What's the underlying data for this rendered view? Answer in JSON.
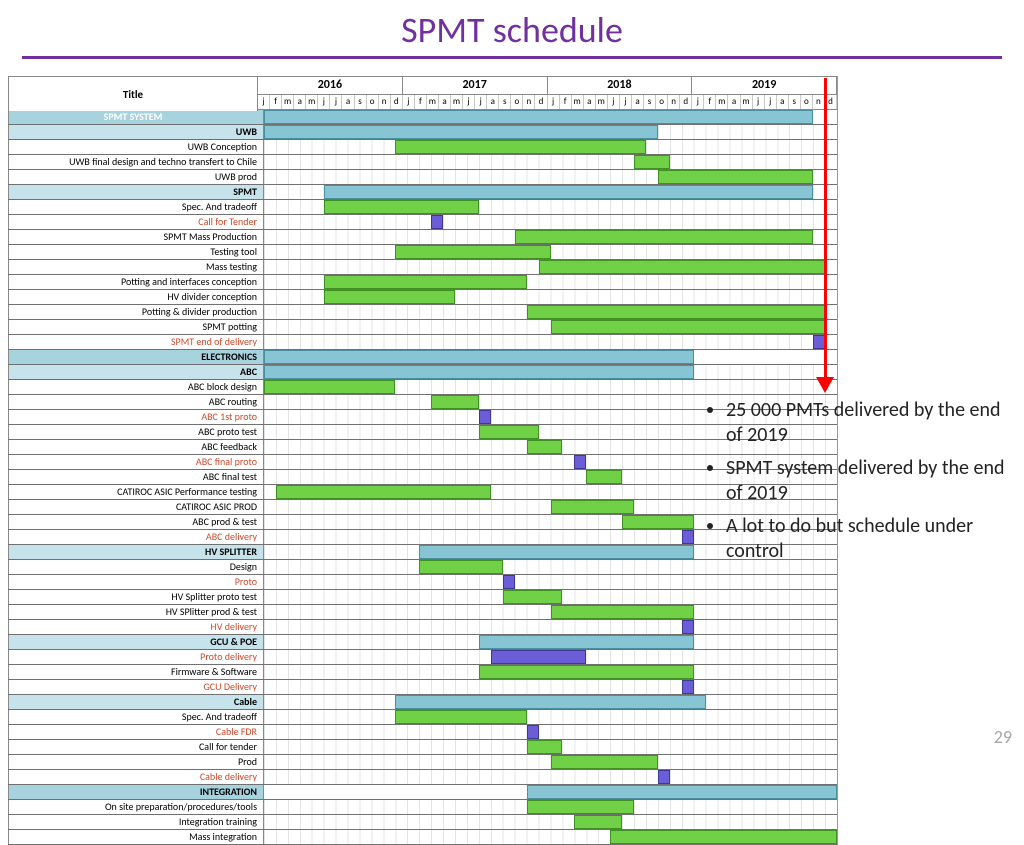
{
  "slide": {
    "title": "SPMT schedule",
    "title_color": "#7030a0",
    "underline_color": "#7030a0",
    "page_number": "29"
  },
  "bullets": [
    "25 000 PMTs delivered by the end of 2019",
    "SPMT system delivered by the end of 2019",
    "A lot to do but schedule under control"
  ],
  "gantt": {
    "title_header": "Title",
    "years": [
      "2016",
      "2017",
      "2018",
      "2019"
    ],
    "months": [
      "j",
      "f",
      "m",
      "a",
      "m",
      "j",
      "j",
      "a",
      "s",
      "o",
      "n",
      "d"
    ],
    "total_months": 48,
    "colors": {
      "section_bg": "#a7d3df",
      "subsection_bg": "#c6e2ea",
      "green": "#70d147",
      "teal": "#87c4d4",
      "purple": "#6a5dd6",
      "milestone_label": "#d14a2b",
      "grid": "#e4e4e4",
      "border": "#888888"
    },
    "rows": [
      {
        "label": "SPMT SYSTEM",
        "type": "section",
        "label_align": "center",
        "label_color": "#ffffff",
        "bars": [
          {
            "start": 0,
            "end": 46,
            "color": "teal"
          }
        ]
      },
      {
        "label": "UWB",
        "type": "subsection",
        "bars": [
          {
            "start": 0,
            "end": 33,
            "color": "teal"
          }
        ]
      },
      {
        "label": "UWB Conception",
        "type": "task",
        "bars": [
          {
            "start": 11,
            "end": 32,
            "color": "green"
          }
        ]
      },
      {
        "label": "UWB final design and techno transfert to Chile",
        "type": "task",
        "bars": [
          {
            "start": 31,
            "end": 34,
            "color": "green"
          }
        ]
      },
      {
        "label": "UWB prod",
        "type": "task",
        "bars": [
          {
            "start": 33,
            "end": 46,
            "color": "green"
          }
        ]
      },
      {
        "label": "SPMT",
        "type": "subsection",
        "bars": [
          {
            "start": 5,
            "end": 46,
            "color": "teal"
          }
        ]
      },
      {
        "label": "Spec. And tradeoff",
        "type": "task",
        "bars": [
          {
            "start": 5,
            "end": 18,
            "color": "green"
          }
        ]
      },
      {
        "label": "Call for Tender",
        "type": "milestone",
        "bars": [
          {
            "start": 14,
            "end": 15,
            "color": "purple"
          }
        ]
      },
      {
        "label": "SPMT Mass Production",
        "type": "task",
        "bars": [
          {
            "start": 21,
            "end": 46,
            "color": "green"
          }
        ]
      },
      {
        "label": "Testing tool",
        "type": "task",
        "bars": [
          {
            "start": 11,
            "end": 24,
            "color": "green"
          }
        ]
      },
      {
        "label": "Mass testing",
        "type": "task",
        "bars": [
          {
            "start": 23,
            "end": 47,
            "color": "green"
          }
        ]
      },
      {
        "label": "Potting and interfaces conception",
        "type": "task",
        "bars": [
          {
            "start": 5,
            "end": 22,
            "color": "green"
          }
        ]
      },
      {
        "label": "HV divider conception",
        "type": "task",
        "bars": [
          {
            "start": 5,
            "end": 16,
            "color": "green"
          }
        ]
      },
      {
        "label": "Potting & divider production",
        "type": "task",
        "bars": [
          {
            "start": 22,
            "end": 47,
            "color": "green"
          }
        ]
      },
      {
        "label": "SPMT potting",
        "type": "task",
        "bars": [
          {
            "start": 24,
            "end": 47,
            "color": "green"
          }
        ]
      },
      {
        "label": "SPMT end of delivery",
        "type": "milestone",
        "bars": [
          {
            "start": 46,
            "end": 47,
            "color": "purple"
          }
        ]
      },
      {
        "label": "ELECTRONICS",
        "type": "section",
        "bars": [
          {
            "start": 0,
            "end": 36,
            "color": "teal"
          }
        ]
      },
      {
        "label": "ABC",
        "type": "subsection",
        "bars": [
          {
            "start": 0,
            "end": 36,
            "color": "teal"
          }
        ]
      },
      {
        "label": "ABC block design",
        "type": "task",
        "bars": [
          {
            "start": 0,
            "end": 11,
            "color": "green"
          }
        ]
      },
      {
        "label": "ABC routing",
        "type": "task",
        "bars": [
          {
            "start": 14,
            "end": 18,
            "color": "green"
          }
        ]
      },
      {
        "label": "ABC 1st proto",
        "type": "milestone",
        "bars": [
          {
            "start": 18,
            "end": 19,
            "color": "purple"
          }
        ]
      },
      {
        "label": "ABC proto test",
        "type": "task",
        "bars": [
          {
            "start": 18,
            "end": 23,
            "color": "green"
          }
        ]
      },
      {
        "label": "ABC feedback",
        "type": "task",
        "bars": [
          {
            "start": 22,
            "end": 25,
            "color": "green"
          }
        ]
      },
      {
        "label": "ABC final proto",
        "type": "milestone",
        "bars": [
          {
            "start": 26,
            "end": 27,
            "color": "purple"
          }
        ]
      },
      {
        "label": "ABC final  test",
        "type": "task",
        "bars": [
          {
            "start": 27,
            "end": 30,
            "color": "green"
          }
        ]
      },
      {
        "label": "CATIROC ASIC Performance testing",
        "type": "task",
        "bars": [
          {
            "start": 1,
            "end": 19,
            "color": "green"
          }
        ]
      },
      {
        "label": "CATIROC ASIC PROD",
        "type": "task",
        "bars": [
          {
            "start": 24,
            "end": 31,
            "color": "green"
          }
        ]
      },
      {
        "label": "ABC prod & test",
        "type": "task",
        "bars": [
          {
            "start": 30,
            "end": 36,
            "color": "green"
          }
        ]
      },
      {
        "label": "ABC delivery",
        "type": "milestone",
        "bars": [
          {
            "start": 35,
            "end": 36,
            "color": "purple"
          }
        ]
      },
      {
        "label": "HV SPLITTER",
        "type": "subsection",
        "bars": [
          {
            "start": 13,
            "end": 36,
            "color": "teal"
          }
        ]
      },
      {
        "label": "Design",
        "type": "task",
        "bars": [
          {
            "start": 13,
            "end": 20,
            "color": "green"
          }
        ]
      },
      {
        "label": "Proto",
        "type": "milestone",
        "bars": [
          {
            "start": 20,
            "end": 21,
            "color": "purple"
          }
        ]
      },
      {
        "label": "HV Splitter proto test",
        "type": "task",
        "bars": [
          {
            "start": 20,
            "end": 25,
            "color": "green"
          }
        ]
      },
      {
        "label": "HV SPlitter prod & test",
        "type": "task",
        "bars": [
          {
            "start": 24,
            "end": 36,
            "color": "green"
          }
        ]
      },
      {
        "label": "HV delivery",
        "type": "milestone",
        "bars": [
          {
            "start": 35,
            "end": 36,
            "color": "purple"
          }
        ]
      },
      {
        "label": "GCU & POE",
        "type": "subsection",
        "bars": [
          {
            "start": 18,
            "end": 36,
            "color": "teal"
          }
        ]
      },
      {
        "label": "Proto delivery",
        "type": "milestone",
        "bars": [
          {
            "start": 19,
            "end": 27,
            "color": "purple"
          }
        ]
      },
      {
        "label": "Firmware & Software",
        "type": "task",
        "bars": [
          {
            "start": 18,
            "end": 36,
            "color": "green"
          }
        ]
      },
      {
        "label": "GCU Delivery",
        "type": "milestone",
        "bars": [
          {
            "start": 35,
            "end": 36,
            "color": "purple"
          }
        ]
      },
      {
        "label": "Cable",
        "type": "subsection",
        "bars": [
          {
            "start": 11,
            "end": 37,
            "color": "teal"
          }
        ]
      },
      {
        "label": "Spec. And tradeoff",
        "type": "task",
        "bars": [
          {
            "start": 11,
            "end": 22,
            "color": "green"
          }
        ]
      },
      {
        "label": "Cable FDR",
        "type": "milestone",
        "bars": [
          {
            "start": 22,
            "end": 23,
            "color": "purple"
          }
        ]
      },
      {
        "label": "Call for tender",
        "type": "task",
        "bars": [
          {
            "start": 22,
            "end": 25,
            "color": "green"
          }
        ]
      },
      {
        "label": "Prod",
        "type": "task",
        "bars": [
          {
            "start": 24,
            "end": 33,
            "color": "green"
          }
        ]
      },
      {
        "label": "Cable delivery",
        "type": "milestone",
        "bars": [
          {
            "start": 33,
            "end": 34,
            "color": "purple"
          }
        ]
      },
      {
        "label": "INTEGRATION",
        "type": "section",
        "bars": [
          {
            "start": 22,
            "end": 48,
            "color": "teal"
          }
        ]
      },
      {
        "label": "On site preparation/procedures/tools",
        "type": "task",
        "bars": [
          {
            "start": 22,
            "end": 31,
            "color": "green"
          }
        ]
      },
      {
        "label": "Integration training",
        "type": "task",
        "bars": [
          {
            "start": 26,
            "end": 30,
            "color": "green"
          }
        ]
      },
      {
        "label": "Mass integration",
        "type": "task",
        "bars": [
          {
            "start": 29,
            "end": 48,
            "color": "green"
          }
        ]
      }
    ]
  }
}
